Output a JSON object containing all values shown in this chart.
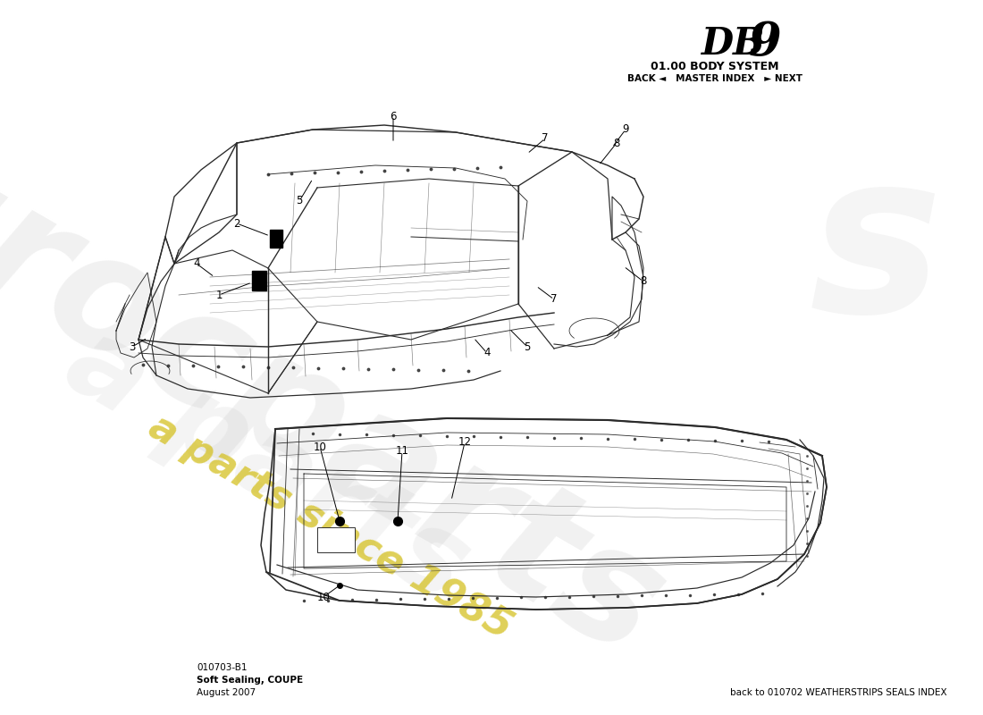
{
  "title_model_db": "DB",
  "title_model_9": "9",
  "title_system": "01.00 BODY SYSTEM",
  "title_nav": "BACK ◄   MASTER INDEX   ► NEXT",
  "part_number": "010703-B1",
  "part_name": "Soft Sealing, COUPE",
  "date": "August 2007",
  "back_link": "back to 010702 WEATHERSTRIPS SEALS INDEX",
  "bg_color": "#ffffff",
  "line_color": "#2a2a2a",
  "wm_grey": "#c8c8c8",
  "wm_yellow": "#d4c020"
}
